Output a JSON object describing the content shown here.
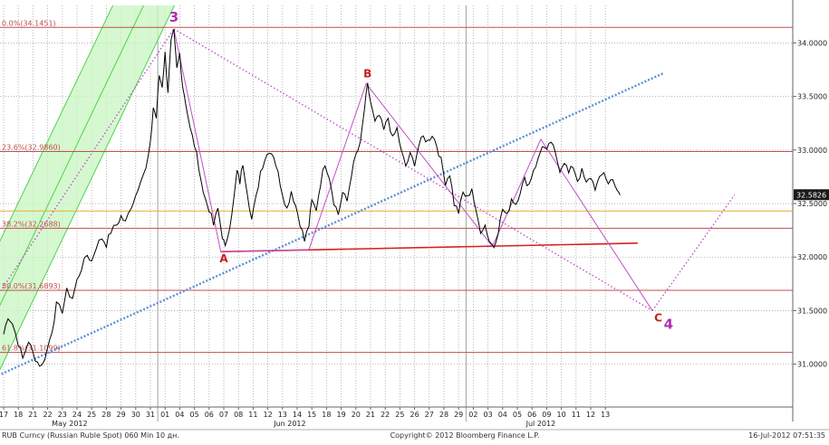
{
  "footer": {
    "left": "RUB Curncy (Russian Ruble Spot) 060 Min 10 дн.",
    "center": "Copyright© 2012 Bloomberg Finance L.P.",
    "right": "16-Jul-2012 07:51:35"
  },
  "colors": {
    "price": "#000000",
    "fib": "#c0504d",
    "fib_label": "#c0504d",
    "channel_fill": "#c8f5c0",
    "channel_line": "#4cd44c",
    "wave": "#c050c8",
    "trend_blue": "#5b8fd8",
    "support_red": "#d62020",
    "gold_line": "#e8b84a",
    "wave_label_magenta": "#b030b0",
    "wave_label_red": "#c81e1e"
  },
  "chart_data": {
    "type": "line",
    "ylim": [
      30.6,
      34.35
    ],
    "y_ticks": [
      31.0,
      31.5,
      32.0,
      32.5,
      33.0,
      33.5,
      34.0
    ],
    "y_tick_labels": [
      "31.0000",
      "31.5000",
      "32.0000",
      "32.5000",
      "33.0000",
      "33.5000",
      "34.0000"
    ],
    "last_price": 32.5826,
    "last_price_label": "32.5826",
    "x_tick_labels": [
      "17",
      "18",
      "21",
      "22",
      "23",
      "24",
      "25",
      "28",
      "29",
      "30",
      "31",
      "01",
      "04",
      "05",
      "06",
      "07",
      "08",
      "11",
      "12",
      "13",
      "14",
      "15",
      "18",
      "19",
      "20",
      "21",
      "22",
      "25",
      "26",
      "27",
      "28",
      "29",
      "02",
      "03",
      "04",
      "05",
      "06",
      "09",
      "10",
      "11",
      "12",
      "13"
    ],
    "month_labels": [
      {
        "label": "May 2012",
        "at_index": 4.5
      },
      {
        "label": "Jun 2012",
        "at_index": 19.5
      },
      {
        "label": "Jul 2012",
        "at_index": 36.6
      }
    ],
    "month_separators_at_index": [
      10.5,
      31.5
    ],
    "fibonacci_levels": [
      {
        "label": "0.0%(34.1451)",
        "value": 34.1451
      },
      {
        "label": "23.6%(32.9860)",
        "value": 32.986
      },
      {
        "label": "38.2%(32.2688)",
        "value": 32.2688
      },
      {
        "label": "50.0%(31.6893)",
        "value": 31.6893
      },
      {
        "label": "61.8%(31.1099)",
        "value": 31.1099
      }
    ],
    "horizontal_line": {
      "value": 32.43
    },
    "price_series": [
      {
        "x": 0,
        "y": 31.28
      },
      {
        "x": 0.3,
        "y": 31.45
      },
      {
        "x": 0.6,
        "y": 31.38
      },
      {
        "x": 1.0,
        "y": 31.2
      },
      {
        "x": 1.3,
        "y": 31.05
      },
      {
        "x": 1.7,
        "y": 31.22
      },
      {
        "x": 2.0,
        "y": 31.1
      },
      {
        "x": 2.3,
        "y": 31.02
      },
      {
        "x": 2.6,
        "y": 30.98
      },
      {
        "x": 3.0,
        "y": 31.15
      },
      {
        "x": 3.3,
        "y": 31.32
      },
      {
        "x": 3.6,
        "y": 31.55
      },
      {
        "x": 4.0,
        "y": 31.5
      },
      {
        "x": 4.3,
        "y": 31.68
      },
      {
        "x": 4.7,
        "y": 31.62
      },
      {
        "x": 5.0,
        "y": 31.78
      },
      {
        "x": 5.3,
        "y": 31.9
      },
      {
        "x": 5.7,
        "y": 32.02
      },
      {
        "x": 6.0,
        "y": 31.96
      },
      {
        "x": 6.3,
        "y": 32.1
      },
      {
        "x": 6.7,
        "y": 32.18
      },
      {
        "x": 7.0,
        "y": 32.12
      },
      {
        "x": 7.3,
        "y": 32.24
      },
      {
        "x": 7.7,
        "y": 32.3
      },
      {
        "x": 8.0,
        "y": 32.38
      },
      {
        "x": 8.3,
        "y": 32.32
      },
      {
        "x": 8.7,
        "y": 32.48
      },
      {
        "x": 9.0,
        "y": 32.58
      },
      {
        "x": 9.3,
        "y": 32.72
      },
      {
        "x": 9.7,
        "y": 32.82
      },
      {
        "x": 10.0,
        "y": 33.05
      },
      {
        "x": 10.2,
        "y": 33.4
      },
      {
        "x": 10.4,
        "y": 33.3
      },
      {
        "x": 10.6,
        "y": 33.7
      },
      {
        "x": 10.8,
        "y": 33.6
      },
      {
        "x": 11.0,
        "y": 33.9
      },
      {
        "x": 11.2,
        "y": 33.55
      },
      {
        "x": 11.4,
        "y": 34.0
      },
      {
        "x": 11.6,
        "y": 34.1
      },
      {
        "x": 11.8,
        "y": 33.75
      },
      {
        "x": 12.0,
        "y": 33.9
      },
      {
        "x": 12.2,
        "y": 33.6
      },
      {
        "x": 12.4,
        "y": 33.45
      },
      {
        "x": 12.7,
        "y": 33.2
      },
      {
        "x": 13.0,
        "y": 33.05
      },
      {
        "x": 13.3,
        "y": 32.85
      },
      {
        "x": 13.6,
        "y": 32.6
      },
      {
        "x": 14.0,
        "y": 32.45
      },
      {
        "x": 14.3,
        "y": 32.3
      },
      {
        "x": 14.6,
        "y": 32.45
      },
      {
        "x": 14.9,
        "y": 32.2
      },
      {
        "x": 15.1,
        "y": 32.08
      },
      {
        "x": 15.4,
        "y": 32.3
      },
      {
        "x": 15.7,
        "y": 32.55
      },
      {
        "x": 15.9,
        "y": 32.8
      },
      {
        "x": 16.1,
        "y": 32.7
      },
      {
        "x": 16.3,
        "y": 32.88
      },
      {
        "x": 16.6,
        "y": 32.62
      },
      {
        "x": 16.9,
        "y": 32.35
      },
      {
        "x": 17.2,
        "y": 32.55
      },
      {
        "x": 17.5,
        "y": 32.8
      },
      {
        "x": 17.8,
        "y": 32.92
      },
      {
        "x": 18.1,
        "y": 33.0
      },
      {
        "x": 18.4,
        "y": 32.95
      },
      {
        "x": 18.7,
        "y": 32.78
      },
      {
        "x": 19.0,
        "y": 32.6
      },
      {
        "x": 19.3,
        "y": 32.45
      },
      {
        "x": 19.6,
        "y": 32.62
      },
      {
        "x": 19.9,
        "y": 32.48
      },
      {
        "x": 20.2,
        "y": 32.32
      },
      {
        "x": 20.5,
        "y": 32.15
      },
      {
        "x": 20.8,
        "y": 32.3
      },
      {
        "x": 21.0,
        "y": 32.52
      },
      {
        "x": 21.3,
        "y": 32.45
      },
      {
        "x": 21.6,
        "y": 32.7
      },
      {
        "x": 21.9,
        "y": 32.88
      },
      {
        "x": 22.2,
        "y": 32.75
      },
      {
        "x": 22.5,
        "y": 32.52
      },
      {
        "x": 22.8,
        "y": 32.4
      },
      {
        "x": 23.1,
        "y": 32.6
      },
      {
        "x": 23.4,
        "y": 32.52
      },
      {
        "x": 23.7,
        "y": 32.78
      },
      {
        "x": 24.0,
        "y": 32.95
      },
      {
        "x": 24.3,
        "y": 33.05
      },
      {
        "x": 24.6,
        "y": 33.4
      },
      {
        "x": 24.8,
        "y": 33.6
      },
      {
        "x": 25.0,
        "y": 33.45
      },
      {
        "x": 25.3,
        "y": 33.25
      },
      {
        "x": 25.6,
        "y": 33.32
      },
      {
        "x": 25.9,
        "y": 33.18
      },
      {
        "x": 26.2,
        "y": 33.3
      },
      {
        "x": 26.5,
        "y": 33.1
      },
      {
        "x": 26.8,
        "y": 33.2
      },
      {
        "x": 27.1,
        "y": 32.98
      },
      {
        "x": 27.4,
        "y": 32.85
      },
      {
        "x": 27.7,
        "y": 32.95
      },
      {
        "x": 28.0,
        "y": 32.88
      },
      {
        "x": 28.3,
        "y": 33.05
      },
      {
        "x": 28.6,
        "y": 33.12
      },
      {
        "x": 28.9,
        "y": 33.08
      },
      {
        "x": 29.2,
        "y": 33.15
      },
      {
        "x": 29.5,
        "y": 33.05
      },
      {
        "x": 29.8,
        "y": 32.9
      },
      {
        "x": 30.1,
        "y": 32.7
      },
      {
        "x": 30.4,
        "y": 32.78
      },
      {
        "x": 30.7,
        "y": 32.5
      },
      {
        "x": 31.0,
        "y": 32.42
      },
      {
        "x": 31.3,
        "y": 32.6
      },
      {
        "x": 31.6,
        "y": 32.55
      },
      {
        "x": 31.9,
        "y": 32.65
      },
      {
        "x": 32.2,
        "y": 32.4
      },
      {
        "x": 32.5,
        "y": 32.25
      },
      {
        "x": 32.8,
        "y": 32.3
      },
      {
        "x": 33.1,
        "y": 32.15
      },
      {
        "x": 33.4,
        "y": 32.1
      },
      {
        "x": 33.7,
        "y": 32.25
      },
      {
        "x": 34.0,
        "y": 32.45
      },
      {
        "x": 34.3,
        "y": 32.38
      },
      {
        "x": 34.6,
        "y": 32.55
      },
      {
        "x": 34.9,
        "y": 32.5
      },
      {
        "x": 35.2,
        "y": 32.62
      },
      {
        "x": 35.5,
        "y": 32.72
      },
      {
        "x": 35.8,
        "y": 32.68
      },
      {
        "x": 36.1,
        "y": 32.82
      },
      {
        "x": 36.4,
        "y": 32.9
      },
      {
        "x": 36.7,
        "y": 33.05
      },
      {
        "x": 37.0,
        "y": 32.98
      },
      {
        "x": 37.3,
        "y": 33.08
      },
      {
        "x": 37.6,
        "y": 32.95
      },
      {
        "x": 37.9,
        "y": 32.82
      },
      {
        "x": 38.2,
        "y": 32.9
      },
      {
        "x": 38.5,
        "y": 32.78
      },
      {
        "x": 38.8,
        "y": 32.85
      },
      {
        "x": 39.1,
        "y": 32.72
      },
      {
        "x": 39.4,
        "y": 32.8
      },
      {
        "x": 39.7,
        "y": 32.68
      },
      {
        "x": 40.0,
        "y": 32.75
      },
      {
        "x": 40.3,
        "y": 32.65
      },
      {
        "x": 40.6,
        "y": 32.72
      },
      {
        "x": 40.9,
        "y": 32.8
      },
      {
        "x": 41.2,
        "y": 32.68
      },
      {
        "x": 41.5,
        "y": 32.75
      },
      {
        "x": 41.8,
        "y": 32.6
      },
      {
        "x": 42.0,
        "y": 32.58
      }
    ],
    "channel": {
      "lower_edge": [
        {
          "x": -0.6,
          "y": 30.85
        },
        {
          "x": 16.0,
          "y": 35.6
        }
      ],
      "upper_edge": [
        {
          "x": -0.6,
          "y": 32.05
        },
        {
          "x": 16.0,
          "y": 36.8
        }
      ],
      "center_line": [
        {
          "x": -0.6,
          "y": 31.45
        },
        {
          "x": 16.0,
          "y": 36.2
        }
      ]
    },
    "blue_trendline": [
      {
        "x": -0.6,
        "y": 30.88
      },
      {
        "x": 45.0,
        "y": 33.72
      }
    ],
    "support_line": [
      {
        "x": 14.8,
        "y": 32.05
      },
      {
        "x": 43.2,
        "y": 32.13
      }
    ],
    "wave_lines": [
      {
        "points": [
          {
            "x": 11.6,
            "y": 34.13
          },
          {
            "x": 14.8,
            "y": 32.05
          },
          {
            "x": 20.8,
            "y": 32.07
          },
          {
            "x": 24.7,
            "y": 33.62
          },
          {
            "x": 33.3,
            "y": 32.1
          },
          {
            "x": 36.6,
            "y": 33.1
          },
          {
            "x": 44.2,
            "y": 31.5
          }
        ],
        "dashed": false
      },
      {
        "points": [
          {
            "x": 11.6,
            "y": 34.13
          },
          {
            "x": 44.2,
            "y": 31.5
          }
        ],
        "dashed": true
      },
      {
        "points": [
          {
            "x": 44.2,
            "y": 31.5
          },
          {
            "x": 49.8,
            "y": 32.58
          }
        ],
        "dashed": true
      },
      {
        "points": [
          {
            "x": -0.6,
            "y": 31.6
          },
          {
            "x": 11.6,
            "y": 34.13
          }
        ],
        "dashed": true
      }
    ],
    "wave_labels": [
      {
        "text": "3",
        "x": 11.6,
        "y": 34.2,
        "color_key": "wave_label_magenta"
      },
      {
        "text": "A",
        "x": 15.0,
        "y": 31.95,
        "color_key": "wave_label_red"
      },
      {
        "text": "B",
        "x": 24.8,
        "y": 33.68,
        "color_key": "wave_label_red"
      },
      {
        "text": "C",
        "x": 44.6,
        "y": 31.4,
        "color_key": "wave_label_red"
      },
      {
        "text": "4",
        "x": 45.3,
        "y": 31.33,
        "color_key": "wave_label_magenta"
      }
    ]
  }
}
